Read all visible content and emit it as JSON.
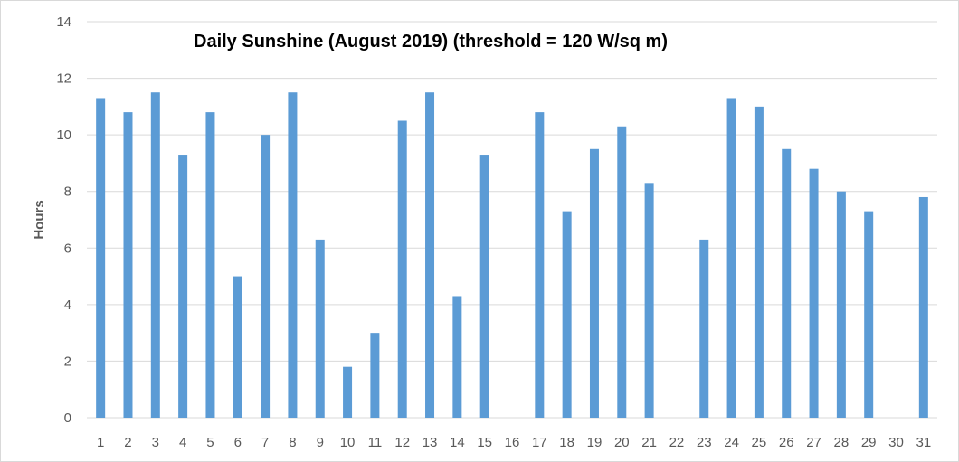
{
  "chart_data": {
    "type": "bar",
    "title": "Daily Sunshine (August 2019) (threshold = 120 W/sq m)",
    "xlabel": "",
    "ylabel": "Hours",
    "categories": [
      "1",
      "2",
      "3",
      "4",
      "5",
      "6",
      "7",
      "8",
      "9",
      "10",
      "11",
      "12",
      "13",
      "14",
      "15",
      "16",
      "17",
      "18",
      "19",
      "20",
      "21",
      "22",
      "23",
      "24",
      "25",
      "26",
      "27",
      "28",
      "29",
      "30",
      "31"
    ],
    "values": [
      11.3,
      10.8,
      11.5,
      9.3,
      10.8,
      5.0,
      10.0,
      11.5,
      6.3,
      1.8,
      3.0,
      10.5,
      11.5,
      4.3,
      9.3,
      0,
      10.8,
      7.3,
      9.5,
      10.3,
      8.3,
      0,
      6.3,
      11.3,
      11.0,
      9.5,
      8.8,
      8.0,
      7.3,
      0,
      7.8
    ],
    "ylim": [
      0,
      14
    ],
    "yticks": [
      0,
      2,
      4,
      6,
      8,
      10,
      12,
      14
    ],
    "grid": true,
    "legend": "none",
    "bar_color": "#5b9bd5",
    "grid_color": "#d9d9d9"
  }
}
